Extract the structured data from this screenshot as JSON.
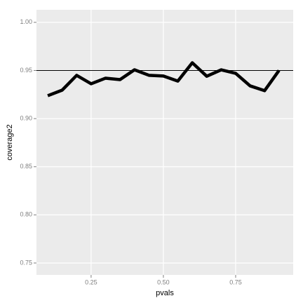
{
  "chart_data": {
    "type": "line",
    "x_label": "pvals",
    "y_label": "coverage2",
    "x": [
      0.1,
      0.15,
      0.2,
      0.25,
      0.3,
      0.35,
      0.4,
      0.45,
      0.5,
      0.55,
      0.6,
      0.65,
      0.7,
      0.75,
      0.8,
      0.85,
      0.9
    ],
    "series": [
      {
        "color": "#000000",
        "values": [
          0.9238,
          0.9296,
          0.9449,
          0.9362,
          0.942,
          0.9405,
          0.9507,
          0.945,
          0.9442,
          0.939,
          0.958,
          0.944,
          0.9507,
          0.947,
          0.934,
          0.929,
          0.95
        ]
      }
    ],
    "hline": 0.95,
    "xlim": [
      0.061,
      0.949
    ],
    "ylim": [
      0.7376,
      1.013
    ],
    "xticks": [
      0.25,
      {
        "value": 0.5,
        "label": "0.50"
      },
      0.75
    ],
    "yticks": [
      0.75,
      {
        "value": 0.8,
        "label": "0.80"
      },
      0.85,
      {
        "value": 0.9,
        "label": "0.90"
      },
      0.95,
      {
        "value": 1,
        "label": "1.00"
      }
    ],
    "grid": true
  }
}
